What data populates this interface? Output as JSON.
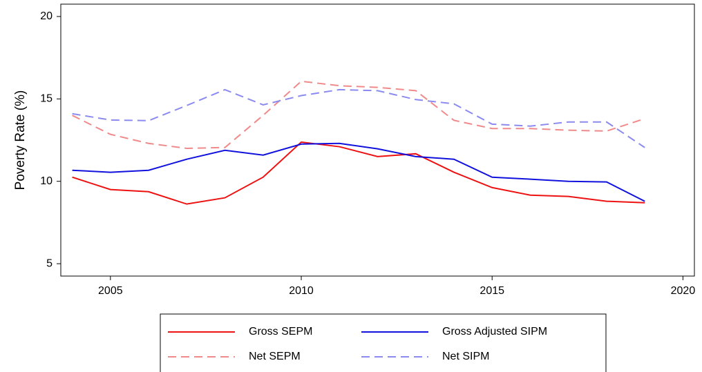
{
  "chart_data": {
    "type": "line",
    "y_label": "Poverty Rate (%)",
    "x": [
      2004,
      2005,
      2006,
      2007,
      2008,
      2009,
      2010,
      2011,
      2012,
      2013,
      2014,
      2015,
      2016,
      2017,
      2018,
      2019
    ],
    "series": [
      {
        "name": "Gross SEPM",
        "color": "#ee1111",
        "dashed": false,
        "values": [
          10.25,
          9.5,
          9.37,
          8.62,
          9.0,
          10.25,
          12.38,
          12.1,
          11.5,
          11.67,
          10.55,
          9.62,
          9.16,
          9.08,
          8.79,
          8.7
        ]
      },
      {
        "name": "Gross Adjusted SIPM",
        "color": "#1111dd",
        "dashed": false,
        "values": [
          10.67,
          10.55,
          10.67,
          11.34,
          11.88,
          11.59,
          12.26,
          12.3,
          11.97,
          11.5,
          11.34,
          10.25,
          10.13,
          10.0,
          9.96,
          8.79
        ]
      },
      {
        "name": "Net SEPM",
        "color": "#f08a8a",
        "dashed": true,
        "values": [
          14.0,
          12.85,
          12.3,
          12.0,
          12.05,
          14.0,
          16.07,
          15.8,
          15.7,
          15.5,
          13.7,
          13.2,
          13.2,
          13.1,
          13.05,
          13.8
        ]
      },
      {
        "name": "Net SIPM",
        "color": "#8a8af0",
        "dashed": true,
        "values": [
          14.1,
          13.72,
          13.68,
          14.6,
          15.56,
          14.64,
          15.2,
          15.56,
          15.5,
          14.96,
          14.7,
          13.47,
          13.35,
          13.6,
          13.6,
          12.05
        ]
      }
    ],
    "xlim": [
      2003.7,
      2020.3
    ],
    "xticks": [
      2005,
      2010,
      2015,
      2020
    ],
    "ylim": [
      4.25,
      20.75
    ],
    "yticks": [
      5,
      10,
      15,
      20
    ],
    "grid": false
  }
}
